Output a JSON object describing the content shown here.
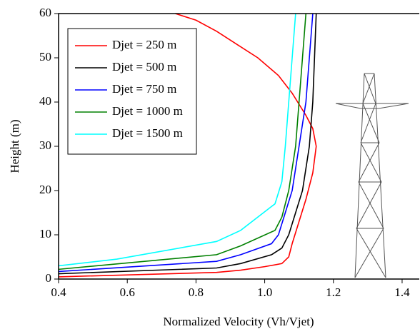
{
  "chart_data": {
    "type": "line",
    "xlabel": "Normalized Velocity (Vh/Vjet)",
    "ylabel": "Height (m)",
    "xlim": [
      0.4,
      1.45
    ],
    "ylim": [
      0,
      60
    ],
    "xticks": [
      {
        "value": 0.4,
        "label": "0.4"
      },
      {
        "value": 0.6,
        "label": "0.6"
      },
      {
        "value": 0.8,
        "label": "0.8"
      },
      {
        "value": 1.0,
        "label": "1.0"
      },
      {
        "value": 1.2,
        "label": "1.2"
      },
      {
        "value": 1.4,
        "label": "1.4"
      }
    ],
    "yticks": [
      0,
      10,
      20,
      30,
      40,
      50,
      60
    ],
    "legend": "upper left",
    "series": [
      {
        "name": "Djet = 250 m",
        "color": "#ff0000",
        "x": [
          0.4,
          0.86,
          0.93,
          1.0,
          1.05,
          1.07,
          1.08,
          1.1,
          1.12,
          1.14,
          1.15,
          1.14,
          1.12,
          1.08,
          1.04,
          0.98,
          0.92,
          0.86,
          0.8,
          0.74
        ],
        "values": [
          0.5,
          1.5,
          2,
          2.8,
          3.5,
          5,
          8,
          13,
          18,
          24,
          30,
          34,
          37,
          42,
          46,
          50,
          53,
          56,
          58.5,
          60
        ]
      },
      {
        "name": "Djet = 500 m",
        "color": "#000000",
        "x": [
          0.4,
          0.86,
          0.93,
          1.02,
          1.05,
          1.07,
          1.09,
          1.11,
          1.13,
          1.14,
          1.145,
          1.15
        ],
        "values": [
          1.2,
          2.5,
          3.5,
          5.5,
          7,
          10,
          15,
          20,
          30,
          40,
          50,
          60
        ]
      },
      {
        "name": "Djet = 750 m",
        "color": "#0000ff",
        "x": [
          0.4,
          0.86,
          0.93,
          1.02,
          1.04,
          1.06,
          1.08,
          1.1,
          1.12,
          1.13,
          1.14
        ],
        "values": [
          1.7,
          4,
          5.5,
          8,
          10,
          15,
          20,
          30,
          40,
          50,
          60
        ]
      },
      {
        "name": "Djet = 1000 m",
        "color": "#008000",
        "x": [
          0.4,
          0.86,
          0.93,
          1.03,
          1.05,
          1.07,
          1.09,
          1.1,
          1.11,
          1.12
        ],
        "values": [
          2.2,
          5.5,
          7.5,
          11,
          14,
          20,
          30,
          40,
          50,
          60
        ]
      },
      {
        "name": "Djet = 1500 m",
        "color": "#00ffff",
        "x": [
          0.4,
          0.57,
          0.86,
          0.93,
          1.03,
          1.05,
          1.06,
          1.07,
          1.08,
          1.09
        ],
        "values": [
          3,
          4.5,
          8.5,
          11,
          17,
          22,
          30,
          40,
          50,
          60
        ]
      }
    ]
  }
}
